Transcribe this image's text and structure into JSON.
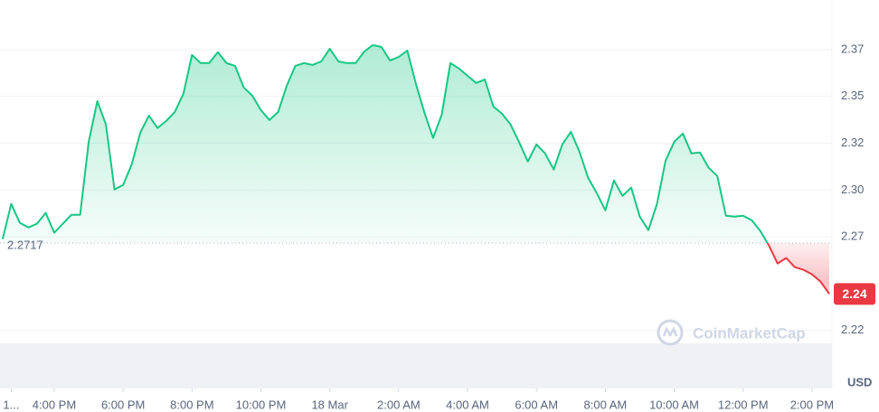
{
  "chart_data": {
    "type": "area",
    "x": [
      14.5,
      14.75,
      15,
      15.25,
      15.5,
      15.75,
      16,
      16.25,
      16.5,
      16.75,
      17,
      17.25,
      17.5,
      17.75,
      18,
      18.25,
      18.5,
      18.75,
      19,
      19.25,
      19.5,
      19.75,
      20,
      20.25,
      20.5,
      20.75,
      21,
      21.25,
      21.5,
      21.75,
      22,
      22.25,
      22.5,
      22.75,
      23,
      23.25,
      23.5,
      23.75,
      24,
      24.25,
      24.5,
      24.75,
      25,
      25.25,
      25.5,
      25.75,
      26,
      26.25,
      26.5,
      26.75,
      27,
      27.25,
      27.5,
      27.75,
      28,
      28.25,
      28.5,
      28.75,
      29,
      29.25,
      29.5,
      29.75,
      30,
      30.25,
      30.5,
      30.75,
      31,
      31.25,
      31.5,
      31.75,
      32,
      32.25,
      32.5,
      32.75,
      33,
      33.25,
      33.5,
      33.75,
      34,
      34.25,
      34.5,
      34.75,
      35,
      35.25,
      35.5,
      35.75,
      36,
      36.25,
      36.5,
      36.75,
      37,
      37.25,
      37.5,
      37.75,
      38,
      38.25,
      38.5
    ],
    "values": [
      2.2738,
      2.2926,
      2.2825,
      2.28,
      2.282,
      2.2878,
      2.2772,
      2.282,
      2.2868,
      2.2868,
      2.3258,
      2.3475,
      2.335,
      2.3003,
      2.3027,
      2.3138,
      2.3307,
      2.3398,
      2.3331,
      2.3369,
      2.3417,
      2.3514,
      2.3721,
      2.3678,
      2.3678,
      2.3736,
      2.3678,
      2.3663,
      2.3548,
      2.3504,
      2.3427,
      2.3374,
      2.3417,
      2.3557,
      2.3663,
      2.3678,
      2.3668,
      2.3687,
      2.3755,
      2.3687,
      2.3678,
      2.3678,
      2.374,
      2.3774,
      2.3764,
      2.3692,
      2.3711,
      2.3745,
      2.3567,
      2.3413,
      2.3278,
      2.3403,
      2.3678,
      2.3649,
      2.361,
      2.3572,
      2.3591,
      2.3446,
      2.3408,
      2.335,
      2.3254,
      2.3152,
      2.3244,
      2.3196,
      2.3109,
      2.3244,
      2.3311,
      2.3205,
      2.3066,
      2.2984,
      2.2892,
      2.3051,
      2.2969,
      2.3013,
      2.2858,
      2.2786,
      2.2926,
      2.3157,
      2.3258,
      2.3302,
      2.3196,
      2.3201,
      2.3119,
      2.3075,
      2.2863,
      2.2858,
      2.2863,
      2.2839,
      2.2781,
      2.2704,
      2.2608,
      2.2637,
      2.2588,
      2.2574,
      2.255,
      2.2511,
      2.2445
    ],
    "color_up": "#16c784",
    "color_down": "#ea3943",
    "baseline": 2.2717,
    "last_price": {
      "value": 2.2445,
      "label": "2.24"
    },
    "ylim": [
      2.194,
      2.4015
    ],
    "yticks": [
      {
        "value": 2.375,
        "label": "2.37"
      },
      {
        "value": 2.35,
        "label": "2.35"
      },
      {
        "value": 2.325,
        "label": "2.32"
      },
      {
        "value": 2.3,
        "label": "2.30"
      },
      {
        "value": 2.275,
        "label": "2.27"
      },
      {
        "value": 2.225,
        "label": "2.22"
      }
    ],
    "xlim": [
      14.425,
      38.58
    ],
    "xticks": [
      {
        "value": 14.75,
        "label": "1..."
      },
      {
        "value": 16,
        "label": "4:00 PM"
      },
      {
        "value": 18,
        "label": "6:00 PM"
      },
      {
        "value": 20,
        "label": "8:00 PM"
      },
      {
        "value": 22,
        "label": "10:00 PM"
      },
      {
        "value": 24,
        "label": "18 Mar"
      },
      {
        "value": 26,
        "label": "2:00 AM"
      },
      {
        "value": 28,
        "label": "4:00 AM"
      },
      {
        "value": 30,
        "label": "6:00 AM"
      },
      {
        "value": 32,
        "label": "8:00 AM"
      },
      {
        "value": 34,
        "label": "10:00 AM"
      },
      {
        "value": 36,
        "label": "12:00 PM"
      },
      {
        "value": 38,
        "label": "2:00 PM"
      }
    ],
    "y_unit": "USD",
    "watermark": "CoinMarketCap",
    "grid": true
  }
}
